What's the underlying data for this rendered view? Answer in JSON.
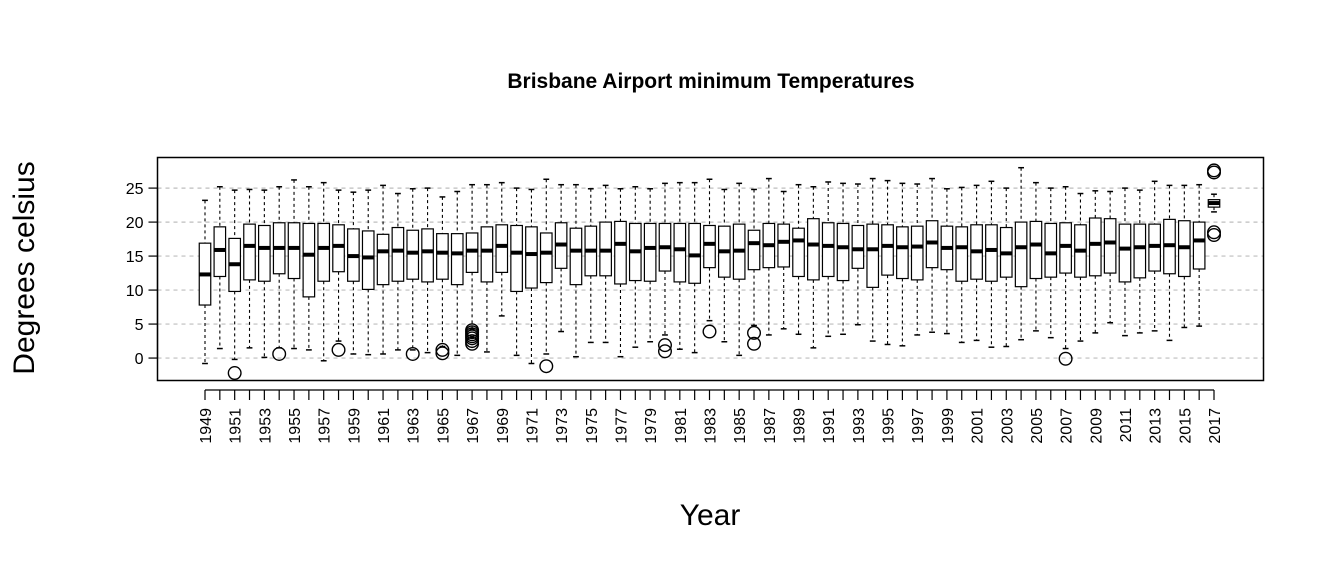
{
  "chart_data": {
    "type": "boxplot",
    "title": "Brisbane Airport minimum Temperatures",
    "xlabel": "Year",
    "ylabel": "Degrees celsius",
    "ylim": [
      -3.3,
      29.5
    ],
    "yticks": [
      0,
      5,
      10,
      15,
      20,
      25
    ],
    "grid": "horizontal dashed",
    "colors": {
      "box_fill": "#ffffff",
      "stroke": "#000000",
      "grid": "#bdbdbd"
    },
    "categories": [
      1949,
      1950,
      1951,
      1952,
      1953,
      1954,
      1955,
      1956,
      1957,
      1958,
      1959,
      1960,
      1961,
      1962,
      1963,
      1964,
      1965,
      1966,
      1967,
      1968,
      1969,
      1970,
      1971,
      1972,
      1973,
      1974,
      1975,
      1976,
      1977,
      1978,
      1979,
      1980,
      1981,
      1982,
      1983,
      1984,
      1985,
      1986,
      1987,
      1988,
      1989,
      1990,
      1991,
      1992,
      1993,
      1994,
      1995,
      1996,
      1997,
      1998,
      1999,
      2000,
      2001,
      2002,
      2003,
      2004,
      2005,
      2006,
      2007,
      2008,
      2009,
      2010,
      2011,
      2012,
      2013,
      2014,
      2015,
      2016,
      2017
    ],
    "tick_labels_shown": [
      1949,
      1951,
      1953,
      1955,
      1957,
      1959,
      1961,
      1963,
      1965,
      1967,
      1969,
      1971,
      1973,
      1975,
      1977,
      1979,
      1981,
      1983,
      1985,
      1987,
      1989,
      1991,
      1993,
      1995,
      1997,
      1999,
      2001,
      2003,
      2005,
      2007,
      2009,
      2011,
      2013,
      2015,
      2017
    ],
    "boxes": [
      {
        "year": 1949,
        "min": -0.8,
        "q1": 7.8,
        "median": 12.3,
        "q3": 16.9,
        "max": 23.2,
        "outliers": []
      },
      {
        "year": 1950,
        "min": 1.4,
        "q1": 12.0,
        "median": 15.9,
        "q3": 19.3,
        "max": 25.2,
        "outliers": []
      },
      {
        "year": 1951,
        "min": -0.2,
        "q1": 9.8,
        "median": 13.8,
        "q3": 17.6,
        "max": 24.7,
        "outliers": [
          -2.2
        ]
      },
      {
        "year": 1952,
        "min": 1.5,
        "q1": 11.5,
        "median": 16.5,
        "q3": 19.7,
        "max": 24.8,
        "outliers": []
      },
      {
        "year": 1953,
        "min": 0.1,
        "q1": 11.3,
        "median": 16.2,
        "q3": 19.5,
        "max": 24.7,
        "outliers": []
      },
      {
        "year": 1954,
        "min": 1.5,
        "q1": 12.4,
        "median": 16.2,
        "q3": 19.9,
        "max": 25.2,
        "outliers": [
          0.6
        ]
      },
      {
        "year": 1955,
        "min": 1.4,
        "q1": 11.7,
        "median": 16.2,
        "q3": 19.9,
        "max": 26.2,
        "outliers": []
      },
      {
        "year": 1956,
        "min": 1.2,
        "q1": 9.0,
        "median": 15.2,
        "q3": 19.8,
        "max": 25.2,
        "outliers": []
      },
      {
        "year": 1957,
        "min": -0.4,
        "q1": 11.3,
        "median": 16.2,
        "q3": 19.8,
        "max": 25.8,
        "outliers": []
      },
      {
        "year": 1958,
        "min": 2.5,
        "q1": 12.7,
        "median": 16.5,
        "q3": 19.6,
        "max": 24.7,
        "outliers": [
          1.2
        ]
      },
      {
        "year": 1959,
        "min": 0.6,
        "q1": 11.3,
        "median": 15.0,
        "q3": 19.0,
        "max": 24.4,
        "outliers": []
      },
      {
        "year": 1960,
        "min": 0.5,
        "q1": 10.1,
        "median": 14.8,
        "q3": 18.7,
        "max": 24.7,
        "outliers": []
      },
      {
        "year": 1961,
        "min": 0.6,
        "q1": 10.8,
        "median": 15.7,
        "q3": 18.2,
        "max": 25.4,
        "outliers": []
      },
      {
        "year": 1962,
        "min": 1.2,
        "q1": 11.3,
        "median": 15.8,
        "q3": 19.2,
        "max": 24.2,
        "outliers": []
      },
      {
        "year": 1963,
        "min": 1.2,
        "q1": 11.6,
        "median": 15.5,
        "q3": 18.8,
        "max": 24.9,
        "outliers": [
          0.6
        ]
      },
      {
        "year": 1964,
        "min": 0.8,
        "q1": 11.2,
        "median": 15.7,
        "q3": 19.0,
        "max": 25.0,
        "outliers": []
      },
      {
        "year": 1965,
        "min": 1.7,
        "q1": 11.6,
        "median": 15.5,
        "q3": 18.3,
        "max": 23.7,
        "outliers": [
          0.7,
          1.2
        ]
      },
      {
        "year": 1966,
        "min": 0.4,
        "q1": 10.8,
        "median": 15.4,
        "q3": 18.3,
        "max": 24.5,
        "outliers": []
      },
      {
        "year": 1967,
        "min": 4.3,
        "q1": 12.6,
        "median": 15.8,
        "q3": 18.4,
        "max": 25.5,
        "outliers": [
          2.1,
          2.5,
          2.9,
          3.2,
          3.5,
          3.8,
          4.1
        ]
      },
      {
        "year": 1968,
        "min": 0.9,
        "q1": 11.2,
        "median": 15.8,
        "q3": 19.3,
        "max": 25.5,
        "outliers": []
      },
      {
        "year": 1969,
        "min": 6.2,
        "q1": 12.6,
        "median": 16.5,
        "q3": 19.6,
        "max": 25.8,
        "outliers": []
      },
      {
        "year": 1970,
        "min": 0.4,
        "q1": 9.8,
        "median": 15.5,
        "q3": 19.5,
        "max": 25.0,
        "outliers": []
      },
      {
        "year": 1971,
        "min": -0.8,
        "q1": 10.3,
        "median": 15.3,
        "q3": 19.3,
        "max": 24.8,
        "outliers": []
      },
      {
        "year": 1972,
        "min": 0.6,
        "q1": 11.1,
        "median": 15.5,
        "q3": 18.4,
        "max": 26.3,
        "outliers": [
          -1.2
        ]
      },
      {
        "year": 1973,
        "min": 3.9,
        "q1": 13.2,
        "median": 16.7,
        "q3": 19.9,
        "max": 25.5,
        "outliers": []
      },
      {
        "year": 1974,
        "min": 0.2,
        "q1": 10.8,
        "median": 15.8,
        "q3": 19.1,
        "max": 25.5,
        "outliers": []
      },
      {
        "year": 1975,
        "min": 2.3,
        "q1": 12.1,
        "median": 15.8,
        "q3": 19.4,
        "max": 24.9,
        "outliers": []
      },
      {
        "year": 1976,
        "min": 2.3,
        "q1": 12.1,
        "median": 15.8,
        "q3": 20.0,
        "max": 25.4,
        "outliers": []
      },
      {
        "year": 1977,
        "min": 0.2,
        "q1": 10.9,
        "median": 16.8,
        "q3": 20.1,
        "max": 24.9,
        "outliers": []
      },
      {
        "year": 1978,
        "min": 1.6,
        "q1": 11.4,
        "median": 15.7,
        "q3": 19.8,
        "max": 25.2,
        "outliers": []
      },
      {
        "year": 1979,
        "min": 2.4,
        "q1": 11.3,
        "median": 16.2,
        "q3": 19.8,
        "max": 24.9,
        "outliers": []
      },
      {
        "year": 1980,
        "min": 3.4,
        "q1": 12.8,
        "median": 16.3,
        "q3": 19.8,
        "max": 25.7,
        "outliers": [
          1.0,
          1.9
        ]
      },
      {
        "year": 1981,
        "min": 1.3,
        "q1": 11.2,
        "median": 16.0,
        "q3": 19.8,
        "max": 25.8,
        "outliers": []
      },
      {
        "year": 1982,
        "min": 0.8,
        "q1": 11.0,
        "median": 15.1,
        "q3": 19.8,
        "max": 25.8,
        "outliers": []
      },
      {
        "year": 1983,
        "min": 5.5,
        "q1": 13.3,
        "median": 16.8,
        "q3": 19.5,
        "max": 26.3,
        "outliers": [
          3.9
        ]
      },
      {
        "year": 1984,
        "min": 2.4,
        "q1": 11.9,
        "median": 15.7,
        "q3": 19.4,
        "max": 24.8,
        "outliers": []
      },
      {
        "year": 1985,
        "min": 0.4,
        "q1": 11.6,
        "median": 15.8,
        "q3": 19.7,
        "max": 25.7,
        "outliers": []
      },
      {
        "year": 1986,
        "min": 4.8,
        "q1": 13.0,
        "median": 16.9,
        "q3": 18.8,
        "max": 24.8,
        "outliers": [
          2.1,
          3.7
        ]
      },
      {
        "year": 1987,
        "min": 3.4,
        "q1": 13.3,
        "median": 16.6,
        "q3": 19.8,
        "max": 26.4,
        "outliers": []
      },
      {
        "year": 1988,
        "min": 4.3,
        "q1": 13.4,
        "median": 17.1,
        "q3": 19.7,
        "max": 24.5,
        "outliers": []
      },
      {
        "year": 1989,
        "min": 3.5,
        "q1": 12.0,
        "median": 17.3,
        "q3": 19.1,
        "max": 25.5,
        "outliers": []
      },
      {
        "year": 1990,
        "min": 1.5,
        "q1": 11.5,
        "median": 16.7,
        "q3": 20.5,
        "max": 25.2,
        "outliers": []
      },
      {
        "year": 1991,
        "min": 3.2,
        "q1": 12.0,
        "median": 16.5,
        "q3": 19.9,
        "max": 25.9,
        "outliers": []
      },
      {
        "year": 1992,
        "min": 3.5,
        "q1": 11.4,
        "median": 16.3,
        "q3": 19.8,
        "max": 25.7,
        "outliers": []
      },
      {
        "year": 1993,
        "min": 4.9,
        "q1": 13.2,
        "median": 16.0,
        "q3": 19.5,
        "max": 25.6,
        "outliers": []
      },
      {
        "year": 1994,
        "min": 2.5,
        "q1": 10.4,
        "median": 16.0,
        "q3": 19.7,
        "max": 26.4,
        "outliers": []
      },
      {
        "year": 1995,
        "min": 2.0,
        "q1": 12.2,
        "median": 16.5,
        "q3": 19.6,
        "max": 26.1,
        "outliers": []
      },
      {
        "year": 1996,
        "min": 1.8,
        "q1": 11.7,
        "median": 16.3,
        "q3": 19.3,
        "max": 25.7,
        "outliers": []
      },
      {
        "year": 1997,
        "min": 3.4,
        "q1": 11.5,
        "median": 16.4,
        "q3": 19.4,
        "max": 25.6,
        "outliers": []
      },
      {
        "year": 1998,
        "min": 3.8,
        "q1": 13.3,
        "median": 17.0,
        "q3": 20.2,
        "max": 26.4,
        "outliers": []
      },
      {
        "year": 1999,
        "min": 3.6,
        "q1": 13.0,
        "median": 16.2,
        "q3": 19.4,
        "max": 24.9,
        "outliers": []
      },
      {
        "year": 2000,
        "min": 2.3,
        "q1": 11.3,
        "median": 16.3,
        "q3": 19.3,
        "max": 25.1,
        "outliers": []
      },
      {
        "year": 2001,
        "min": 2.6,
        "q1": 11.6,
        "median": 15.7,
        "q3": 19.6,
        "max": 25.4,
        "outliers": []
      },
      {
        "year": 2002,
        "min": 1.6,
        "q1": 11.3,
        "median": 15.9,
        "q3": 19.6,
        "max": 26.0,
        "outliers": []
      },
      {
        "year": 2003,
        "min": 1.7,
        "q1": 11.9,
        "median": 15.4,
        "q3": 19.2,
        "max": 25.0,
        "outliers": []
      },
      {
        "year": 2004,
        "min": 2.7,
        "q1": 10.5,
        "median": 16.3,
        "q3": 20.0,
        "max": 28.0,
        "outliers": []
      },
      {
        "year": 2005,
        "min": 4.0,
        "q1": 11.7,
        "median": 16.7,
        "q3": 20.1,
        "max": 25.8,
        "outliers": []
      },
      {
        "year": 2006,
        "min": 3.0,
        "q1": 11.9,
        "median": 15.4,
        "q3": 19.8,
        "max": 25.0,
        "outliers": []
      },
      {
        "year": 2007,
        "min": 1.4,
        "q1": 12.5,
        "median": 16.5,
        "q3": 19.9,
        "max": 25.2,
        "outliers": [
          -0.1
        ]
      },
      {
        "year": 2008,
        "min": 2.5,
        "q1": 11.9,
        "median": 15.8,
        "q3": 19.6,
        "max": 24.2,
        "outliers": []
      },
      {
        "year": 2009,
        "min": 3.7,
        "q1": 12.1,
        "median": 16.8,
        "q3": 20.6,
        "max": 24.6,
        "outliers": []
      },
      {
        "year": 2010,
        "min": 5.2,
        "q1": 12.5,
        "median": 17.0,
        "q3": 20.5,
        "max": 24.5,
        "outliers": []
      },
      {
        "year": 2011,
        "min": 3.3,
        "q1": 11.2,
        "median": 16.1,
        "q3": 19.7,
        "max": 25.0,
        "outliers": []
      },
      {
        "year": 2012,
        "min": 3.7,
        "q1": 11.8,
        "median": 16.3,
        "q3": 19.7,
        "max": 24.7,
        "outliers": []
      },
      {
        "year": 2013,
        "min": 4.0,
        "q1": 12.8,
        "median": 16.5,
        "q3": 19.7,
        "max": 26.0,
        "outliers": []
      },
      {
        "year": 2014,
        "min": 2.6,
        "q1": 12.4,
        "median": 16.6,
        "q3": 20.4,
        "max": 25.4,
        "outliers": []
      },
      {
        "year": 2015,
        "min": 4.5,
        "q1": 12.0,
        "median": 16.3,
        "q3": 20.2,
        "max": 25.4,
        "outliers": []
      },
      {
        "year": 2016,
        "min": 4.7,
        "q1": 13.1,
        "median": 17.3,
        "q3": 20.0,
        "max": 25.5,
        "outliers": []
      },
      {
        "year": 2017,
        "min": 21.5,
        "q1": 22.2,
        "median": 22.8,
        "q3": 23.3,
        "max": 24.1,
        "outliers": [
          18.1,
          18.5,
          27.3,
          27.6
        ]
      }
    ]
  }
}
